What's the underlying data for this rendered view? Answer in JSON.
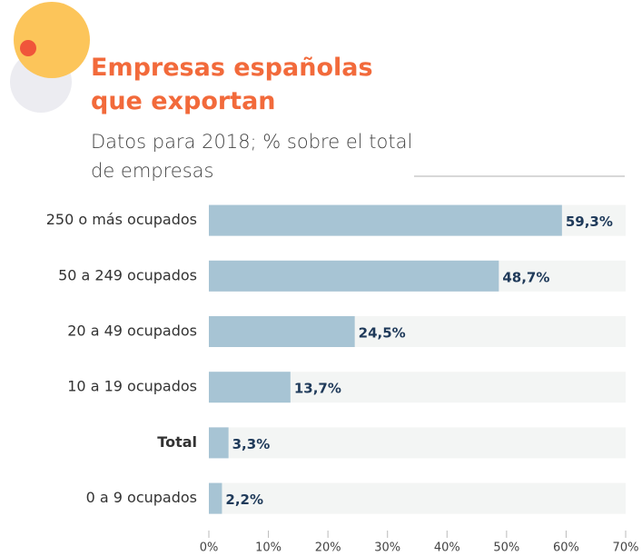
{
  "chart_data": {
    "type": "bar",
    "orientation": "horizontal",
    "title": "Empresas españolas que exportan",
    "subtitle": "Datos para 2018; % sobre el total de empresas",
    "categories": [
      "250 o más ocupados",
      "50 a 249 ocupados",
      "20 a 49 ocupados",
      "10 a 19 ocupados",
      "Total",
      "0 a 9 ocupados"
    ],
    "values": [
      59.3,
      48.7,
      24.5,
      13.7,
      3.3,
      2.2
    ],
    "value_labels": [
      "59,3%",
      "48,7%",
      "24,5%",
      "13,7%",
      "3,3%",
      "2,2%"
    ],
    "color": "#a7c4d4",
    "xlim": [
      0,
      70
    ],
    "xticks": [
      {
        "value": 0,
        "label": "0%"
      },
      {
        "value": 10,
        "label": "10%"
      },
      {
        "value": 20,
        "label": "20%"
      },
      {
        "value": 30,
        "label": "30%"
      },
      {
        "value": 40,
        "label": "40%"
      },
      {
        "value": 50,
        "label": "50%"
      },
      {
        "value": 60,
        "label": "60%"
      },
      {
        "value": 70,
        "label": "70%"
      }
    ]
  }
}
